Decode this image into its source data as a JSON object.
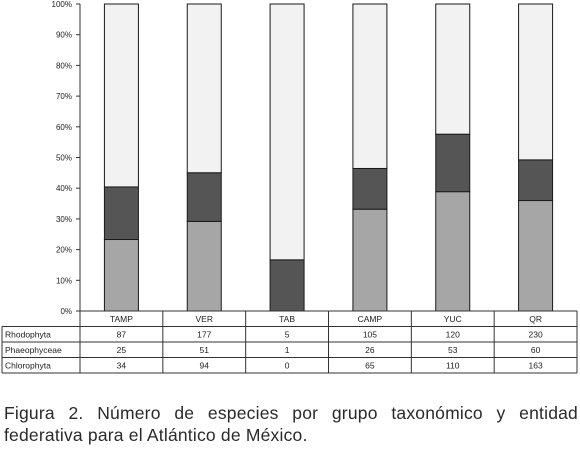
{
  "chart_data": {
    "type": "bar",
    "stacked": "percent",
    "categories": [
      "TAMP",
      "VER",
      "TAB",
      "CAMP",
      "YUC",
      "QR"
    ],
    "series": [
      {
        "name": "Rhodophyta",
        "values": [
          87,
          177,
          5,
          105,
          120,
          230
        ],
        "color": "#f2f2f2"
      },
      {
        "name": "Phaeophyceae",
        "values": [
          25,
          51,
          1,
          26,
          53,
          60
        ],
        "color": "#555555"
      },
      {
        "name": "Chlorophyta",
        "values": [
          34,
          94,
          0,
          65,
          110,
          163
        ],
        "color": "#a6a6a6"
      }
    ],
    "y_ticks": [
      "0%",
      "10%",
      "20%",
      "30%",
      "40%",
      "50%",
      "60%",
      "70%",
      "80%",
      "90%",
      "100%"
    ],
    "ylim": [
      0,
      100
    ],
    "grid": false,
    "legend": "data-table-below"
  },
  "caption": "Figura 2. Número de especies por grupo taxonómico y entidad federativa para el Atlántico de México."
}
